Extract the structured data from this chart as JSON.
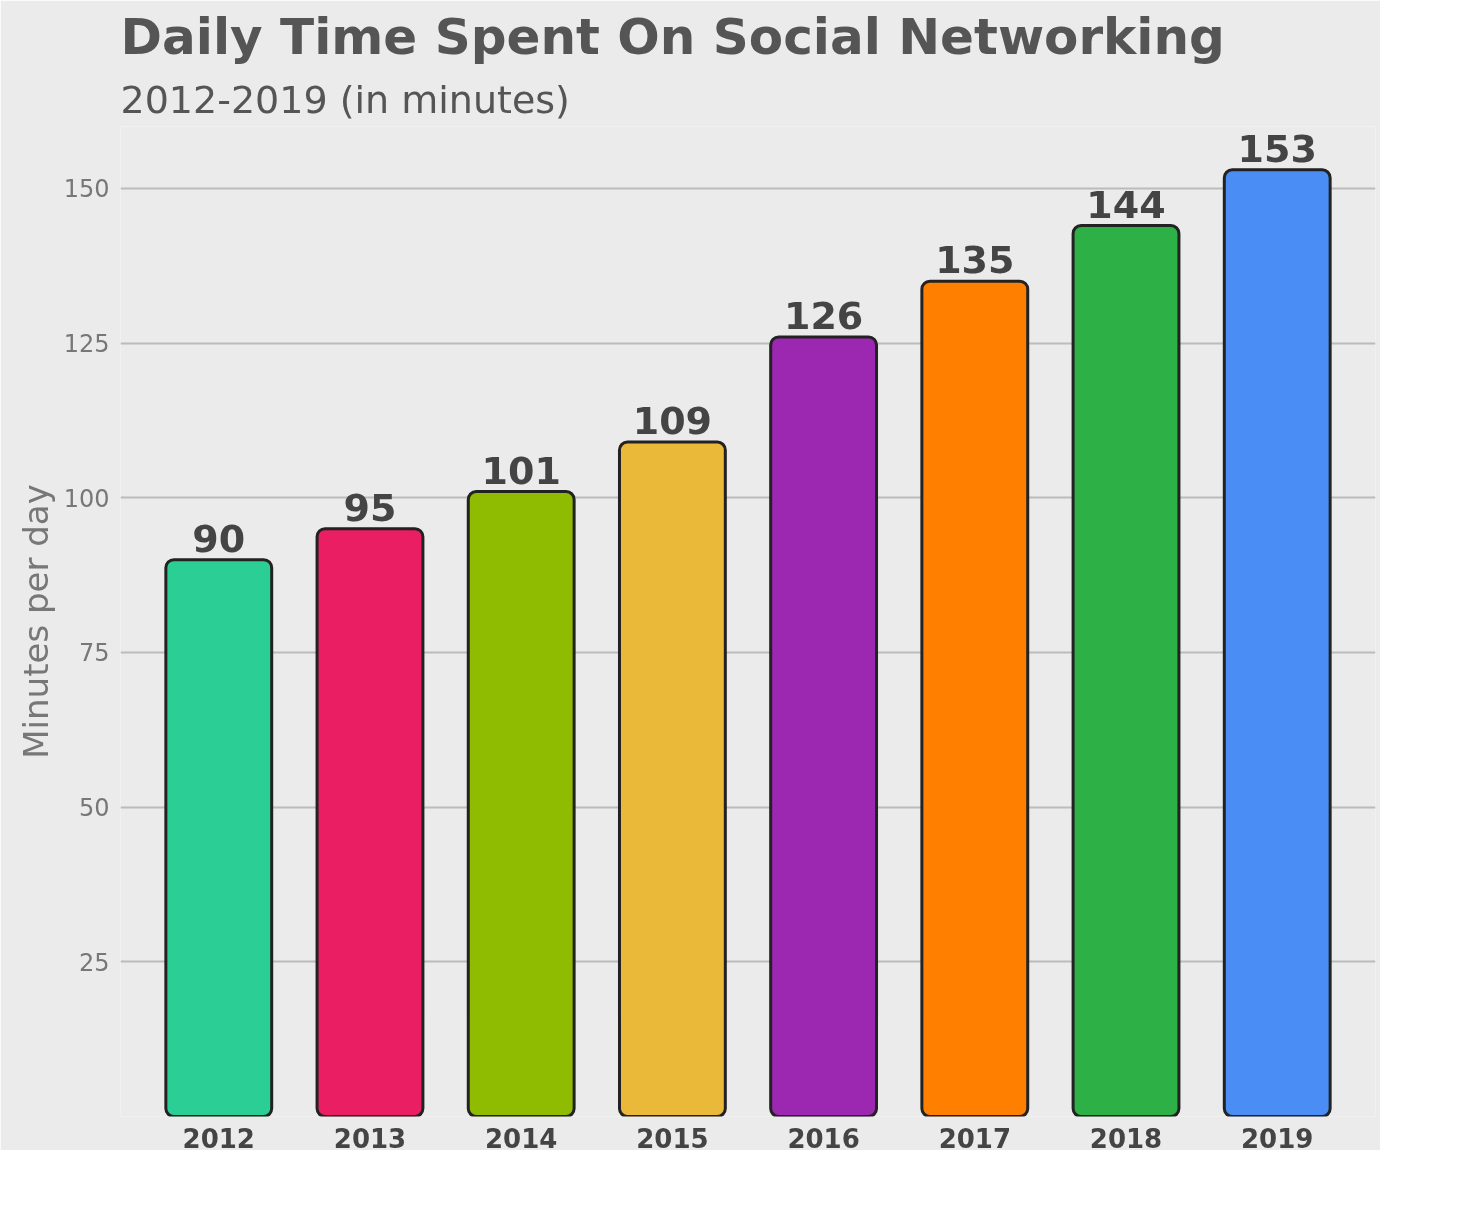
{
  "chart_data": {
    "type": "bar",
    "title": "Daily Time Spent On Social Networking",
    "subtitle": "2012-2019 (in minutes)",
    "ylabel": "Minutes per day",
    "categories": [
      "2012",
      "2013",
      "2014",
      "2015",
      "2016",
      "2017",
      "2018",
      "2019"
    ],
    "values": [
      90,
      95,
      101,
      109,
      126,
      135,
      144,
      153
    ],
    "colors": [
      "#2bcf95",
      "#e91e63",
      "#8fbc00",
      "#ebb93a",
      "#9c27b0",
      "#ff8000",
      "#2db046",
      "#4a8ef5"
    ],
    "ylim": [
      0,
      160
    ],
    "yticks": [
      {
        "value": 0,
        "label": null
      },
      25,
      50,
      75,
      100,
      125,
      150
    ],
    "grid": "y",
    "data_labels": true
  }
}
